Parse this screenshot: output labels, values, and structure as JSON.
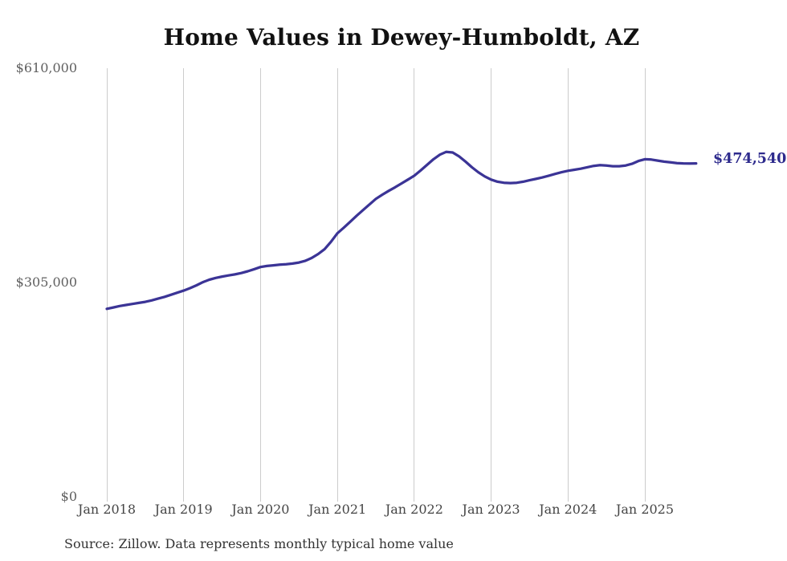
{
  "header": {
    "title": "Home Values in Dewey-Humboldt, AZ"
  },
  "annotations": {
    "latest_value_label": "$474,540"
  },
  "footer": {
    "source_text": "Source: Zillow. Data represents monthly typical home value"
  },
  "colors": {
    "line": "#3b3496",
    "end_label": "#2e2b8d",
    "gridline": "#cccccc"
  },
  "chart_data": {
    "type": "line",
    "title": "Home Values in Dewey-Humboldt, AZ",
    "series_name": "Monthly typical home value (ZHVI)",
    "frequency": "monthly",
    "start_month": "2018-01",
    "end_month": "2025-09",
    "latest_value": 474540,
    "end_label": "$474,540",
    "ylim": [
      0,
      610000
    ],
    "grid": "vertical-only",
    "legend": "none",
    "x_ticks": [
      "Jan 2018",
      "Jan 2019",
      "Jan 2020",
      "Jan 2021",
      "Jan 2022",
      "Jan 2023",
      "Jan 2024",
      "Jan 2025"
    ],
    "y_ticks": [
      {
        "label": "$0",
        "value": 0
      },
      {
        "label": "$305,000",
        "value": 305000
      },
      {
        "label": "$610,000",
        "value": 610000
      }
    ],
    "values": [
      267500,
      269500,
      271500,
      273000,
      274500,
      276000,
      277500,
      279500,
      282000,
      284500,
      287500,
      290500,
      293500,
      297000,
      301000,
      305500,
      309000,
      311500,
      313500,
      315000,
      316500,
      318500,
      321000,
      324000,
      327000,
      328500,
      329500,
      330500,
      331000,
      332000,
      333500,
      336000,
      340000,
      345500,
      352500,
      363000,
      375000,
      383000,
      391500,
      400000,
      408000,
      416000,
      424000,
      430000,
      435500,
      440500,
      446000,
      451500,
      457000,
      464500,
      472500,
      480500,
      487000,
      491000,
      490000,
      484500,
      477000,
      469000,
      462000,
      456000,
      451500,
      448500,
      447000,
      446500,
      447000,
      448500,
      450500,
      452500,
      454500,
      457000,
      459500,
      462000,
      464000,
      465500,
      467000,
      469000,
      471000,
      472000,
      471500,
      470500,
      470500,
      471500,
      474000,
      478000,
      480500,
      480000,
      478500,
      477000,
      476000,
      475000,
      474500,
      474400,
      474540
    ]
  }
}
